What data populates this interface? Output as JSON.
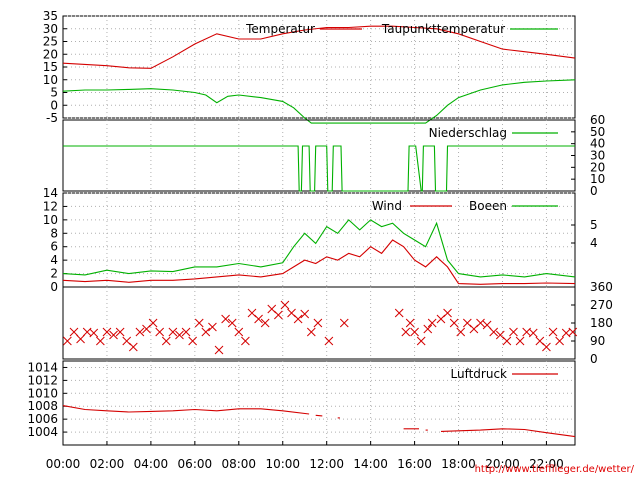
{
  "url": "http://www.tiefflieger.de/wetter/",
  "colors": {
    "red": "#d40000",
    "green": "#00b000",
    "grid": "#b0b0b0",
    "frame": "#000000"
  },
  "x_axis": {
    "ticks": [
      "00:00",
      "02:00",
      "04:00",
      "06:00",
      "08:00",
      "10:00",
      "12:00",
      "14:00",
      "16:00",
      "18:00",
      "20:00",
      "22:00"
    ],
    "range_hours": [
      0,
      23.3
    ]
  },
  "chart_data": [
    {
      "type": "line",
      "id": "temp",
      "legend": [
        "Temperatur",
        "Taupunkttemperatur"
      ],
      "y_ticks": [
        "35",
        "30",
        "25",
        "20",
        "15",
        "10",
        "5",
        "0",
        "-5"
      ],
      "ylim": [
        -5,
        35
      ],
      "series": [
        {
          "name": "Temperatur",
          "color": "red",
          "x": [
            0,
            1,
            2,
            3,
            4,
            5,
            6,
            7,
            8,
            9,
            10,
            11,
            12,
            13,
            14,
            15,
            16,
            17,
            18,
            19,
            20,
            21,
            22,
            23.3
          ],
          "y": [
            16.5,
            16,
            15.5,
            14.7,
            14.5,
            19,
            24,
            28,
            26,
            26,
            28,
            29.5,
            30.5,
            30.5,
            31,
            31,
            30.5,
            30,
            28,
            25,
            22,
            21,
            20,
            18.5
          ]
        },
        {
          "name": "Taupunkttemperatur",
          "color": "green",
          "x": [
            0,
            1,
            2,
            3,
            4,
            5,
            6,
            6.5,
            7,
            7.5,
            8,
            9,
            10,
            10.5,
            11,
            11.3,
            16.5,
            17,
            17.5,
            18,
            19,
            20,
            21,
            22,
            23.3
          ],
          "y": [
            5.5,
            6,
            6,
            6.2,
            6.5,
            6,
            5,
            4,
            1,
            3.5,
            4,
            3,
            1.5,
            -1,
            -5,
            -7,
            -7,
            -4,
            0,
            3,
            6,
            8,
            9,
            9.5,
            10
          ]
        }
      ]
    },
    {
      "type": "line",
      "id": "rain",
      "legend": [
        "Niederschlag"
      ],
      "y_ticks_right": [
        "60",
        "50",
        "40",
        "30",
        "20",
        "10",
        "0"
      ],
      "ylim": [
        0,
        60
      ],
      "series": [
        {
          "name": "Niederschlag",
          "color": "green",
          "x": [
            0,
            10.7,
            10.75,
            10.85,
            10.9,
            11.2,
            11.25,
            11.45,
            11.5,
            12,
            12.05,
            12.25,
            12.3,
            12.65,
            12.7,
            15.7,
            15.75,
            15.95,
            16,
            16.05,
            16.3,
            16.35,
            16.4,
            16.9,
            16.95,
            17.45,
            17.5,
            23.3
          ],
          "y": [
            38,
            38,
            0,
            0,
            38,
            38,
            0,
            0,
            38,
            38,
            0,
            0,
            38,
            38,
            0,
            0,
            38,
            38,
            38,
            38,
            0,
            0,
            38,
            38,
            0,
            0,
            38,
            38
          ]
        }
      ]
    },
    {
      "type": "line",
      "id": "wind",
      "legend": [
        "Wind",
        "Boeen"
      ],
      "y_ticks": [
        "14",
        "12",
        "10",
        "8",
        "6",
        "4",
        "2",
        "0"
      ],
      "y_ticks_right": [
        "5",
        "4"
      ],
      "ylim": [
        0,
        14
      ],
      "series": [
        {
          "name": "Wind",
          "color": "red",
          "x": [
            0,
            1,
            2,
            3,
            4,
            5,
            6,
            7,
            8,
            9,
            10,
            10.5,
            11,
            11.5,
            12,
            12.5,
            13,
            13.5,
            14,
            14.5,
            15,
            15.5,
            16,
            16.5,
            17,
            17.5,
            18,
            19,
            20,
            21,
            22,
            23.3
          ],
          "y": [
            1,
            0.8,
            1,
            0.7,
            1,
            1,
            1.2,
            1.5,
            1.8,
            1.5,
            2,
            3,
            4,
            3.5,
            4.5,
            4,
            5,
            4.5,
            6,
            5,
            7,
            6,
            4,
            3,
            4.5,
            3,
            0.5,
            0.4,
            0.5,
            0.5,
            0.6,
            0.5
          ]
        },
        {
          "name": "Boeen",
          "color": "green",
          "x": [
            0,
            1,
            2,
            3,
            4,
            5,
            6,
            7,
            8,
            9,
            10,
            10.5,
            11,
            11.5,
            12,
            12.5,
            13,
            13.5,
            14,
            14.5,
            15,
            15.5,
            16,
            16.5,
            17,
            17.5,
            18,
            19,
            20,
            21,
            22,
            23.3
          ],
          "y": [
            2,
            1.8,
            2.5,
            2,
            2.4,
            2.3,
            3,
            3,
            3.5,
            3,
            3.6,
            6,
            8,
            6.5,
            9,
            8,
            10,
            8.5,
            10,
            9,
            9.5,
            8,
            7,
            6,
            9.5,
            4,
            2,
            1.5,
            1.8,
            1.5,
            2,
            1.5
          ]
        }
      ]
    },
    {
      "type": "scatter",
      "id": "winddir",
      "y_ticks_right": [
        "360",
        "270",
        "180",
        "90",
        "0"
      ],
      "ylim": [
        0,
        360
      ],
      "series": [
        {
          "name": "",
          "color": "red",
          "x": [
            0.2,
            0.5,
            0.8,
            1.1,
            1.4,
            1.7,
            2,
            2.3,
            2.6,
            2.9,
            3.2,
            3.5,
            3.8,
            4.1,
            4.4,
            4.7,
            5,
            5.3,
            5.6,
            5.9,
            6.2,
            6.5,
            6.8,
            7.1,
            7.4,
            7.7,
            8,
            8.3,
            8.6,
            8.9,
            9.2,
            9.5,
            9.8,
            10.1,
            10.4,
            10.7,
            11,
            11.3,
            11.6,
            12.1,
            12.8,
            15.3,
            15.6,
            15.8,
            16,
            16.3,
            16.6,
            16.8,
            17.2,
            17.5,
            17.8,
            18.1,
            18.4,
            18.7,
            19,
            19.3,
            19.6,
            19.9,
            20.2,
            20.5,
            20.8,
            21.1,
            21.4,
            21.7,
            22,
            22.3,
            22.6,
            22.9,
            23.2
          ],
          "y": [
            90,
            135,
            100,
            135,
            130,
            90,
            135,
            120,
            135,
            90,
            60,
            135,
            150,
            180,
            135,
            90,
            135,
            120,
            135,
            90,
            180,
            135,
            160,
            45,
            200,
            180,
            135,
            90,
            230,
            200,
            180,
            250,
            220,
            270,
            230,
            200,
            225,
            135,
            180,
            90,
            180,
            230,
            135,
            180,
            135,
            90,
            150,
            180,
            200,
            230,
            180,
            135,
            180,
            150,
            180,
            170,
            135,
            120,
            90,
            135,
            90,
            135,
            130,
            90,
            60,
            135,
            90,
            130,
            135
          ]
        }
      ]
    },
    {
      "type": "line",
      "id": "pressure",
      "legend": [
        "Luftdruck"
      ],
      "y_ticks": [
        "1014",
        "1012",
        "1010",
        "1008",
        "1006",
        "1004"
      ],
      "ylim": [
        1002,
        1015
      ],
      "series": [
        {
          "name": "Luftdruck",
          "color": "red",
          "segments": [
            {
              "x": [
                0,
                1,
                2,
                3,
                4,
                5,
                6,
                7,
                8,
                9,
                10,
                11.2
              ],
              "y": [
                1008.1,
                1007.5,
                1007.3,
                1007.1,
                1007.2,
                1007.3,
                1007.5,
                1007.3,
                1007.6,
                1007.6,
                1007.3,
                1006.8
              ]
            },
            {
              "x": [
                11.5,
                11.8
              ],
              "y": [
                1006.6,
                1006.5
              ]
            },
            {
              "x": [
                12.5,
                12.6
              ],
              "y": [
                1006.2,
                1006.2
              ]
            },
            {
              "x": [
                15.5,
                16.2
              ],
              "y": [
                1004.5,
                1004.5
              ]
            },
            {
              "x": [
                16.5,
                16.6
              ],
              "y": [
                1004.3,
                1004.3
              ]
            },
            {
              "x": [
                17.2,
                18,
                19,
                20,
                21,
                22,
                23.3
              ],
              "y": [
                1004.1,
                1004.2,
                1004.3,
                1004.5,
                1004.4,
                1003.9,
                1003.3
              ]
            }
          ]
        }
      ]
    }
  ]
}
